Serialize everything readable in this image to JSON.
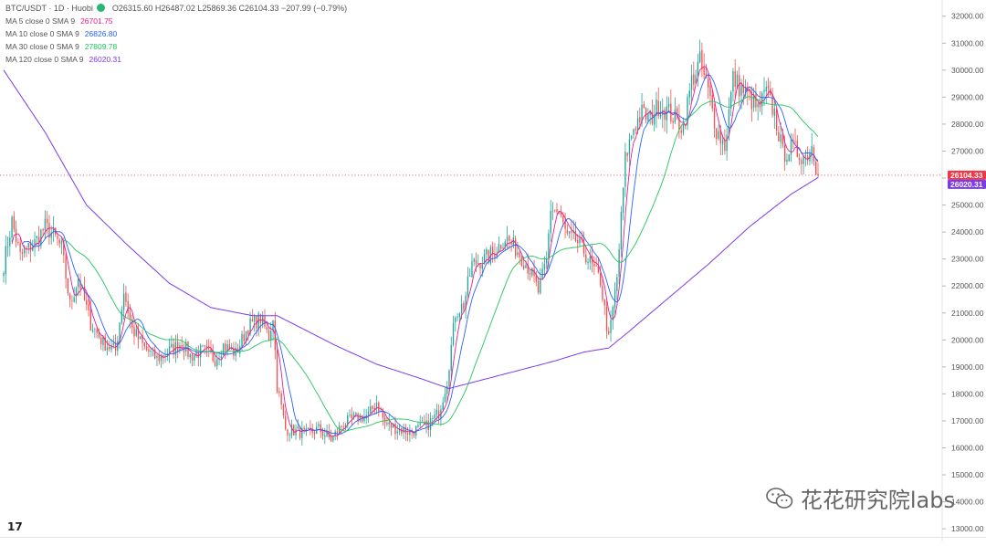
{
  "header": {
    "symbol": "BTC/USDT · 1D · Huobi",
    "ohlc": "O26315.60 H26487.02 L25869.36 C26104.33 −207.99 (−0.79%)"
  },
  "indicators": [
    {
      "label": "MA 5 close 0 SMA 9",
      "value": "26701.75",
      "color": "#e91e8c"
    },
    {
      "label": "MA 10 close 0 SMA 9",
      "value": "26826.80",
      "color": "#2962ff"
    },
    {
      "label": "MA 30 close 0 SMA 9",
      "value": "27809.78",
      "color": "#22c55e"
    },
    {
      "label": "MA 120 close 0 SMA 9",
      "value": "26020.31",
      "color": "#7c3aed"
    }
  ],
  "watermark": "花花研究院labs",
  "logo": "17",
  "chart_data": {
    "type": "candlestick",
    "yaxis_ticks": [
      "32000.00",
      "31000.00",
      "30000.00",
      "29000.00",
      "28000.00",
      "27000.00",
      "26000.00",
      "25000.00",
      "24000.00",
      "23000.00",
      "22000.00",
      "21000.00",
      "20000.00",
      "19000.00",
      "18000.00",
      "17000.00",
      "16000.00",
      "15000.00",
      "14000.00",
      "13000.00"
    ],
    "ylim": [
      12700,
      32600
    ],
    "last_price": {
      "label": "26104.33",
      "value": 26104.33,
      "color": "#f23645"
    },
    "ma120_price": {
      "label": "26020.31",
      "value": 26020.31,
      "color": "#7c3aed"
    },
    "up_color": "#26a69a",
    "down_color": "#ef5350",
    "close_anchors": [
      [
        0,
        22800
      ],
      [
        4,
        24400
      ],
      [
        8,
        23100
      ],
      [
        15,
        23600
      ],
      [
        20,
        24200
      ],
      [
        24,
        23900
      ],
      [
        28,
        23400
      ],
      [
        32,
        21300
      ],
      [
        36,
        22300
      ],
      [
        42,
        20600
      ],
      [
        48,
        19900
      ],
      [
        54,
        19600
      ],
      [
        58,
        21800
      ],
      [
        62,
        20400
      ],
      [
        68,
        19700
      ],
      [
        74,
        19300
      ],
      [
        80,
        19600
      ],
      [
        86,
        19900
      ],
      [
        90,
        19400
      ],
      [
        96,
        19600
      ],
      [
        102,
        19300
      ],
      [
        106,
        19800
      ],
      [
        112,
        19500
      ],
      [
        118,
        20500
      ],
      [
        124,
        20800
      ],
      [
        128,
        20100
      ],
      [
        130,
        20900
      ],
      [
        132,
        18300
      ],
      [
        136,
        16700
      ],
      [
        142,
        16600
      ],
      [
        146,
        16500
      ],
      [
        152,
        16700
      ],
      [
        158,
        16300
      ],
      [
        164,
        16900
      ],
      [
        170,
        17100
      ],
      [
        176,
        17200
      ],
      [
        180,
        17700
      ],
      [
        184,
        16900
      ],
      [
        190,
        16700
      ],
      [
        196,
        16600
      ],
      [
        204,
        16800
      ],
      [
        210,
        17300
      ],
      [
        214,
        18500
      ],
      [
        218,
        21000
      ],
      [
        222,
        21300
      ],
      [
        226,
        22800
      ],
      [
        232,
        23000
      ],
      [
        236,
        23200
      ],
      [
        242,
        23800
      ],
      [
        248,
        23300
      ],
      [
        254,
        22600
      ],
      [
        258,
        21800
      ],
      [
        262,
        22900
      ],
      [
        264,
        24900
      ],
      [
        268,
        24700
      ],
      [
        272,
        23800
      ],
      [
        276,
        23700
      ],
      [
        280,
        23300
      ],
      [
        284,
        22700
      ],
      [
        288,
        22200
      ],
      [
        292,
        20000
      ],
      [
        296,
        22300
      ],
      [
        300,
        26700
      ],
      [
        304,
        27900
      ],
      [
        308,
        28400
      ],
      [
        312,
        28200
      ],
      [
        316,
        28700
      ],
      [
        320,
        28500
      ],
      [
        324,
        28200
      ],
      [
        328,
        27900
      ],
      [
        332,
        29600
      ],
      [
        336,
        30300
      ],
      [
        340,
        29200
      ],
      [
        344,
        27800
      ],
      [
        348,
        27200
      ],
      [
        352,
        29700
      ],
      [
        356,
        29300
      ],
      [
        360,
        29000
      ],
      [
        364,
        28500
      ],
      [
        368,
        29200
      ],
      [
        372,
        28400
      ],
      [
        376,
        26900
      ],
      [
        380,
        27100
      ],
      [
        384,
        26900
      ],
      [
        387,
        26800
      ],
      [
        390,
        27200
      ],
      [
        393,
        26104
      ]
    ],
    "ma120_anchors": [
      [
        0,
        30000
      ],
      [
        20,
        27700
      ],
      [
        40,
        25000
      ],
      [
        60,
        23500
      ],
      [
        80,
        22100
      ],
      [
        100,
        21200
      ],
      [
        120,
        20900
      ],
      [
        132,
        20900
      ],
      [
        160,
        19800
      ],
      [
        180,
        19100
      ],
      [
        200,
        18600
      ],
      [
        215,
        18200
      ],
      [
        230,
        18500
      ],
      [
        250,
        18900
      ],
      [
        265,
        19200
      ],
      [
        280,
        19550
      ],
      [
        292,
        19700
      ],
      [
        300,
        20200
      ],
      [
        320,
        21500
      ],
      [
        340,
        22800
      ],
      [
        360,
        24200
      ],
      [
        380,
        25400
      ],
      [
        393,
        26020
      ]
    ],
    "ma_configs": [
      {
        "name": "MA 5",
        "period": 5,
        "color": "#e91e8c"
      },
      {
        "name": "MA 10",
        "period": 10,
        "color": "#2962ff"
      },
      {
        "name": "MA 30",
        "period": 30,
        "color": "#22c55e"
      }
    ]
  }
}
